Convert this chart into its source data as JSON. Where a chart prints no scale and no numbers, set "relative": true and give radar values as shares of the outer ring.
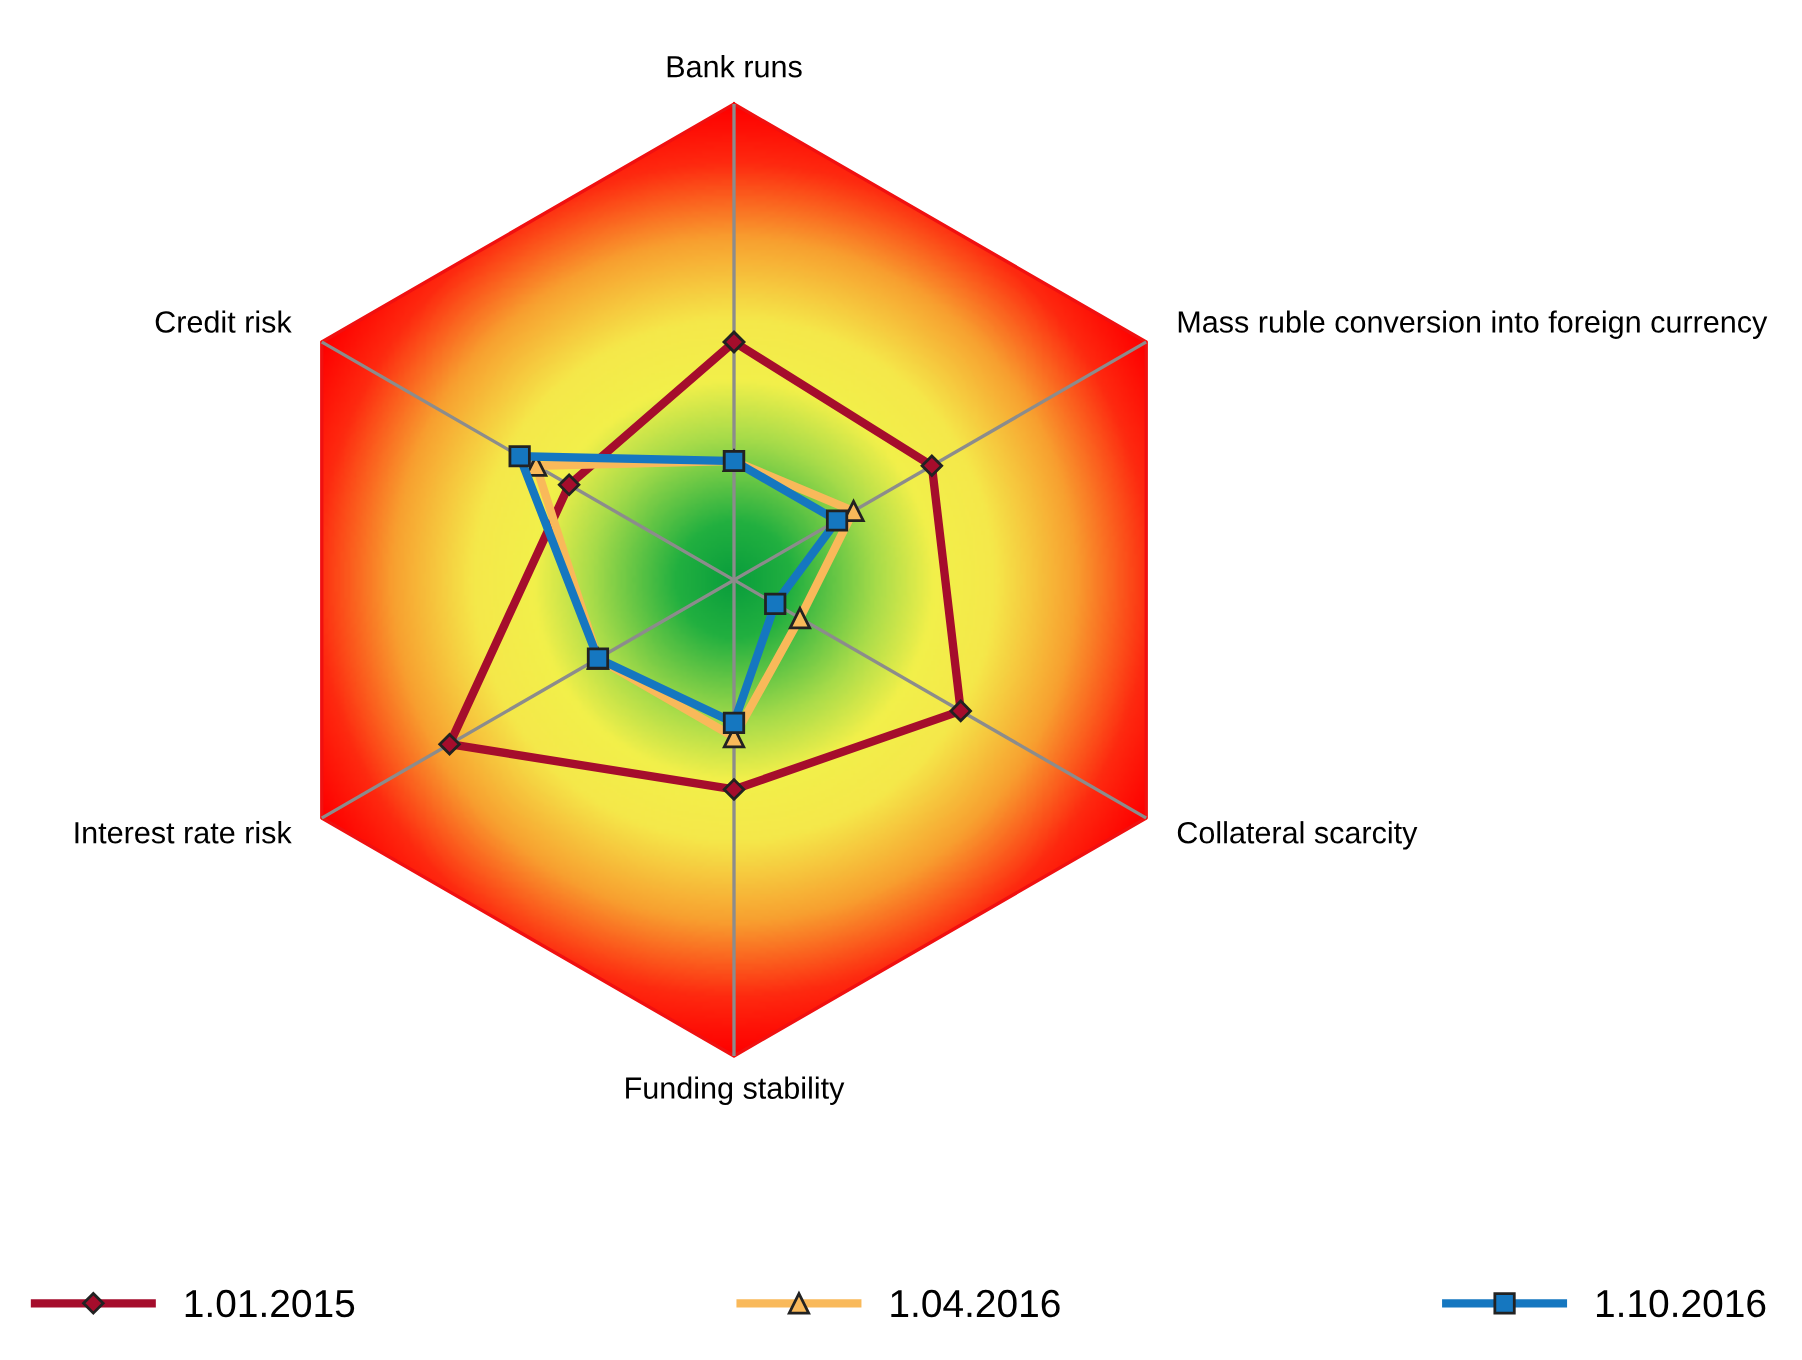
{
  "chart_data": {
    "type": "radar",
    "relative": true,
    "categories": [
      "Bank runs",
      "Mass ruble conversion into foreign currency",
      "Collateral scarcity",
      "Funding stability",
      "Interest rate risk",
      "Credit risk"
    ],
    "legend": "bottom",
    "series": [
      {
        "name": "1.01.2015",
        "color": "#a50d2c",
        "marker": "diamond",
        "values": [
          0.5,
          0.48,
          0.55,
          0.44,
          0.69,
          0.4
        ]
      },
      {
        "name": "1.04.2016",
        "color": "#f9b95a",
        "marker": "triangle",
        "values": [
          0.25,
          0.29,
          0.16,
          0.33,
          0.33,
          0.48
        ]
      },
      {
        "name": "1.10.2016",
        "color": "#1577c0",
        "marker": "square",
        "values": [
          0.25,
          0.25,
          0.1,
          0.3,
          0.33,
          0.52
        ]
      }
    ]
  }
}
